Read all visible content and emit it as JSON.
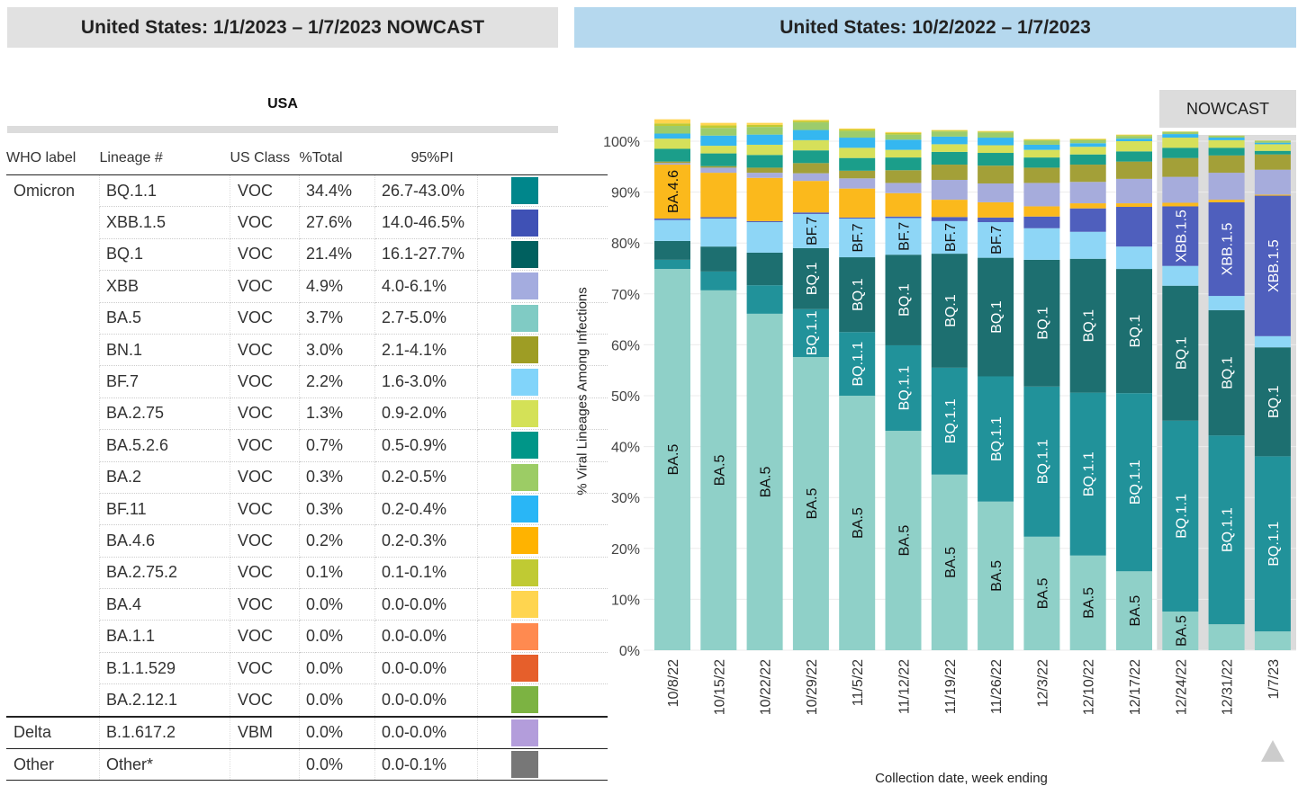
{
  "left_header": "United States: 1/1/2023 – 1/7/2023 NOWCAST",
  "right_header": "United States: 10/2/2022 – 1/7/2023",
  "region": "USA",
  "table": {
    "columns": [
      "WHO label",
      "Lineage #",
      "US Class",
      "%Total",
      "95%PI"
    ],
    "rows": [
      {
        "who": "Omicron",
        "lineage": "BQ.1.1",
        "cls": "VOC",
        "total": "34.4%",
        "pi": "26.7-43.0%",
        "color": "#00868b"
      },
      {
        "who": "",
        "lineage": "XBB.1.5",
        "cls": "VOC",
        "total": "27.6%",
        "pi": "14.0-46.5%",
        "color": "#3f51b5"
      },
      {
        "who": "",
        "lineage": "BQ.1",
        "cls": "VOC",
        "total": "21.4%",
        "pi": "16.1-27.7%",
        "color": "#00605f"
      },
      {
        "who": "",
        "lineage": "XBB",
        "cls": "VOC",
        "total": "4.9%",
        "pi": "4.0-6.1%",
        "color": "#a4acdf"
      },
      {
        "who": "",
        "lineage": "BA.5",
        "cls": "VOC",
        "total": "3.7%",
        "pi": "2.7-5.0%",
        "color": "#80cbc4"
      },
      {
        "who": "",
        "lineage": "BN.1",
        "cls": "VOC",
        "total": "3.0%",
        "pi": "2.1-4.1%",
        "color": "#9e9d24"
      },
      {
        "who": "",
        "lineage": "BF.7",
        "cls": "VOC",
        "total": "2.2%",
        "pi": "1.6-3.0%",
        "color": "#81d4fa"
      },
      {
        "who": "",
        "lineage": "BA.2.75",
        "cls": "VOC",
        "total": "1.3%",
        "pi": "0.9-2.0%",
        "color": "#d4e157"
      },
      {
        "who": "",
        "lineage": "BA.5.2.6",
        "cls": "VOC",
        "total": "0.7%",
        "pi": "0.5-0.9%",
        "color": "#009688"
      },
      {
        "who": "",
        "lineage": "BA.2",
        "cls": "VOC",
        "total": "0.3%",
        "pi": "0.2-0.5%",
        "color": "#9ccc65"
      },
      {
        "who": "",
        "lineage": "BF.11",
        "cls": "VOC",
        "total": "0.3%",
        "pi": "0.2-0.4%",
        "color": "#29b6f6"
      },
      {
        "who": "",
        "lineage": "BA.4.6",
        "cls": "VOC",
        "total": "0.2%",
        "pi": "0.2-0.3%",
        "color": "#ffb300"
      },
      {
        "who": "",
        "lineage": "BA.2.75.2",
        "cls": "VOC",
        "total": "0.1%",
        "pi": "0.1-0.1%",
        "color": "#c0ca33"
      },
      {
        "who": "",
        "lineage": "BA.4",
        "cls": "VOC",
        "total": "0.0%",
        "pi": "0.0-0.0%",
        "color": "#ffd54f"
      },
      {
        "who": "",
        "lineage": "BA.1.1",
        "cls": "VOC",
        "total": "0.0%",
        "pi": "0.0-0.0%",
        "color": "#ff8a50"
      },
      {
        "who": "",
        "lineage": "B.1.1.529",
        "cls": "VOC",
        "total": "0.0%",
        "pi": "0.0-0.0%",
        "color": "#e65f2b"
      },
      {
        "who": "",
        "lineage": "BA.2.12.1",
        "cls": "VOC",
        "total": "0.0%",
        "pi": "0.0-0.0%",
        "color": "#7cb342"
      },
      {
        "who": "Delta",
        "lineage": "B.1.617.2",
        "cls": "VBM",
        "total": "0.0%",
        "pi": "0.0-0.0%",
        "color": "#b39ddb"
      },
      {
        "who": "Other",
        "lineage": "Other*",
        "cls": "",
        "total": "0.0%",
        "pi": "0.0-0.1%",
        "color": "#777777"
      }
    ]
  },
  "chart_data": {
    "type": "bar",
    "stacked": true,
    "ylabel": "% Viral Lineages Among Infections",
    "xlabel": "Collection date, week ending",
    "ylim": [
      0,
      100
    ],
    "yticks": [
      "0%",
      "10%",
      "20%",
      "30%",
      "40%",
      "50%",
      "60%",
      "70%",
      "80%",
      "90%",
      "100%"
    ],
    "nowcast_label": "NOWCAST",
    "nowcast_weeks": [
      "12/24/22",
      "12/31/22",
      "1/7/23"
    ],
    "categories": [
      "10/8/22",
      "10/15/22",
      "10/22/22",
      "10/29/22",
      "11/5/22",
      "11/12/22",
      "11/19/22",
      "11/26/22",
      "12/3/22",
      "12/10/22",
      "12/17/22",
      "12/24/22",
      "12/31/22",
      "1/7/23"
    ],
    "stack_order": [
      "BA.5",
      "BQ.1.1",
      "BQ.1",
      "BF.7",
      "XBB.1.5",
      "BA.4.6",
      "XBB",
      "BN.1",
      "BA.5.2.6",
      "BA.2.75",
      "BF.11",
      "BA.2",
      "BA.2.75.2",
      "BA.4",
      "Other"
    ],
    "colors": {
      "BA.5": "#8fd0c8",
      "BQ.1.1": "#21929a",
      "BQ.1": "#1d6f70",
      "BF.7": "#8ed6f6",
      "XBB.1.5": "#4f5fbd",
      "BA.4.6": "#fbb91c",
      "XBB": "#a6acdc",
      "BN.1": "#a3a038",
      "BA.5.2.6": "#1b9e8a",
      "BA.2.75": "#d6e05a",
      "BF.11": "#35b7f0",
      "BA.2": "#9ccc6c",
      "BA.2.75.2": "#c0ca33",
      "BA.4": "#ffd54f",
      "Other": "#c9a3a8"
    },
    "series": [
      {
        "name": "BA.5",
        "values": [
          74.9,
          70.7,
          66.1,
          57.6,
          50.0,
          43.1,
          34.5,
          29.2,
          22.3,
          18.6,
          15.5,
          7.6,
          5.1,
          3.7
        ]
      },
      {
        "name": "BQ.1.1",
        "values": [
          1.8,
          3.7,
          5.6,
          9.4,
          12.5,
          16.8,
          21.0,
          24.6,
          29.5,
          32.0,
          35.0,
          37.5,
          37.1,
          34.4
        ]
      },
      {
        "name": "BQ.1",
        "values": [
          3.7,
          4.9,
          6.4,
          12.0,
          14.7,
          17.8,
          22.4,
          23.3,
          24.9,
          26.3,
          24.4,
          26.5,
          24.6,
          21.4
        ]
      },
      {
        "name": "BF.7",
        "values": [
          4.1,
          5.5,
          6.0,
          6.7,
          7.6,
          7.2,
          6.4,
          7.0,
          6.2,
          5.3,
          4.4,
          3.9,
          2.8,
          2.2
        ]
      },
      {
        "name": "XBB.1.5",
        "values": [
          0.3,
          0.3,
          0.2,
          0.3,
          0.2,
          0.3,
          0.8,
          0.9,
          2.3,
          4.6,
          7.8,
          11.7,
          18.4,
          27.6
        ]
      },
      {
        "name": "BA.4.6",
        "values": [
          10.6,
          8.7,
          8.5,
          6.2,
          5.7,
          4.6,
          3.4,
          3.0,
          2.0,
          1.0,
          0.7,
          0.7,
          0.5,
          0.2
        ]
      },
      {
        "name": "XBB",
        "values": [
          0.3,
          1.0,
          1.0,
          1.5,
          2.0,
          2.0,
          3.9,
          3.7,
          4.6,
          4.2,
          4.8,
          5.1,
          5.3,
          4.9
        ]
      },
      {
        "name": "BN.1",
        "values": [
          0.3,
          0.3,
          1.0,
          2.0,
          1.5,
          2.5,
          3.0,
          3.5,
          3.0,
          3.4,
          3.4,
          3.7,
          3.4,
          3.0
        ]
      },
      {
        "name": "BA.5.2.6",
        "values": [
          2.5,
          2.5,
          2.5,
          2.5,
          2.5,
          2.5,
          2.5,
          2.5,
          2.0,
          2.0,
          2.0,
          2.0,
          1.5,
          0.7
        ]
      },
      {
        "name": "BA.2.75",
        "values": [
          2.0,
          1.5,
          2.0,
          2.0,
          2.0,
          1.5,
          1.5,
          1.5,
          1.5,
          1.5,
          2.0,
          2.0,
          1.5,
          1.3
        ]
      },
      {
        "name": "BF.11",
        "values": [
          1.0,
          2.0,
          2.0,
          2.0,
          2.0,
          2.0,
          1.5,
          1.5,
          1.0,
          0.7,
          0.5,
          0.7,
          0.5,
          0.3
        ]
      },
      {
        "name": "BA.2",
        "values": [
          1.5,
          1.5,
          1.5,
          1.5,
          1.3,
          1.0,
          1.0,
          1.0,
          0.8,
          0.6,
          0.5,
          0.4,
          0.3,
          0.3
        ]
      },
      {
        "name": "BA.2.75.2",
        "values": [
          0.5,
          0.5,
          0.4,
          0.3,
          0.3,
          0.3,
          0.2,
          0.2,
          0.2,
          0.2,
          0.2,
          0.1,
          0.1,
          0.1
        ]
      },
      {
        "name": "BA.4",
        "values": [
          0.8,
          0.5,
          0.4,
          0.2,
          0.2,
          0.2,
          0.1,
          0.1,
          0.1,
          0.1,
          0.1,
          0.0,
          0.0,
          0.0
        ]
      }
    ],
    "segment_labels": [
      [
        "BA.5",
        "BA.4.6"
      ],
      [
        "BA.5"
      ],
      [
        "BA.5"
      ],
      [
        "BA.5",
        "BQ.1.1",
        "BQ.1",
        "BF.7"
      ],
      [
        "BA.5",
        "BQ.1.1",
        "BQ.1",
        "BF.7"
      ],
      [
        "BA.5",
        "BQ.1.1",
        "BQ.1",
        "BF.7"
      ],
      [
        "BA.5",
        "BQ.1.1",
        "BQ.1",
        "BF.7"
      ],
      [
        "BA.5",
        "BQ.1.1",
        "BQ.1",
        "BF.7"
      ],
      [
        "BA.5",
        "BQ.1.1",
        "BQ.1"
      ],
      [
        "BA.5",
        "BQ.1.1",
        "BQ.1"
      ],
      [
        "BA.5",
        "BQ.1.1",
        "BQ.1"
      ],
      [
        "BA.5",
        "BQ.1.1",
        "BQ.1",
        "XBB.1.5"
      ],
      [
        "BQ.1.1",
        "BQ.1",
        "XBB.1.5"
      ],
      [
        "BQ.1.1",
        "BQ.1",
        "XBB.1.5"
      ]
    ]
  }
}
